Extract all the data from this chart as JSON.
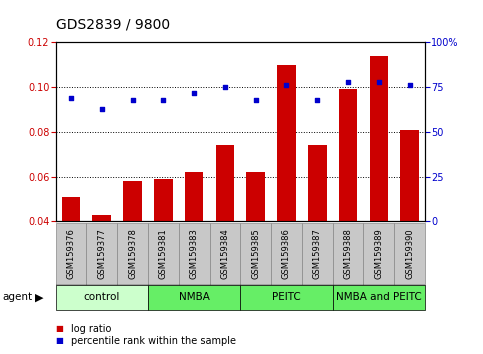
{
  "title": "GDS2839 / 9800",
  "samples": [
    "GSM159376",
    "GSM159377",
    "GSM159378",
    "GSM159381",
    "GSM159383",
    "GSM159384",
    "GSM159385",
    "GSM159386",
    "GSM159387",
    "GSM159388",
    "GSM159389",
    "GSM159390"
  ],
  "log_ratio": [
    0.051,
    0.043,
    0.058,
    0.059,
    0.062,
    0.074,
    0.062,
    0.11,
    0.074,
    0.099,
    0.114,
    0.081
  ],
  "percentile_rank_pct": [
    69,
    63,
    68,
    68,
    72,
    75,
    68,
    76,
    68,
    78,
    78,
    76
  ],
  "ylim_left": [
    0.04,
    0.12
  ],
  "ylim_right": [
    0,
    100
  ],
  "yticks_left": [
    0.04,
    0.06,
    0.08,
    0.1,
    0.12
  ],
  "yticks_right": [
    0,
    25,
    50,
    75,
    100
  ],
  "bar_color": "#cc0000",
  "dot_color": "#0000cc",
  "groups": [
    {
      "label": "control",
      "start": 0,
      "end": 3,
      "color": "#ccffcc"
    },
    {
      "label": "NMBA",
      "start": 3,
      "end": 6,
      "color": "#66ee66"
    },
    {
      "label": "PEITC",
      "start": 6,
      "end": 9,
      "color": "#66ee66"
    },
    {
      "label": "NMBA and PEITC",
      "start": 9,
      "end": 12,
      "color": "#66ee66"
    }
  ],
  "agent_label": "agent",
  "legend_items": [
    {
      "label": "log ratio",
      "color": "#cc0000"
    },
    {
      "label": "percentile rank within the sample",
      "color": "#0000cc"
    }
  ],
  "title_fontsize": 10,
  "tick_fontsize": 7,
  "label_fontsize": 8,
  "sample_label_color": "#c0c0c0",
  "sample_border_color": "#888888"
}
